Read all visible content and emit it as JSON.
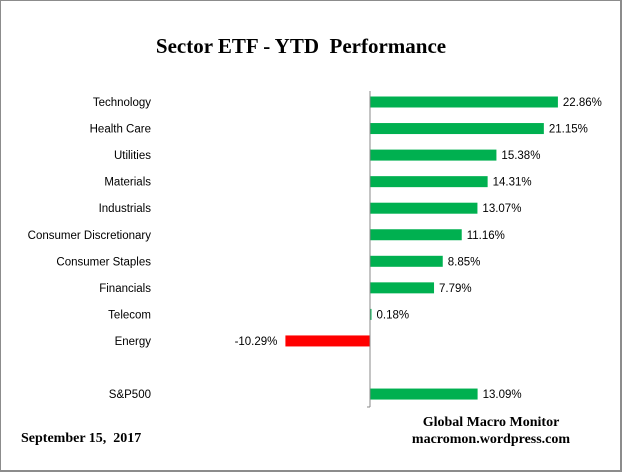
{
  "chart_data": {
    "type": "bar",
    "orientation": "horizontal",
    "title": "Sector ETF - YTD  Performance",
    "categories": [
      "Technology",
      "Health Care",
      "Utilities",
      "Materials",
      "Industrials",
      "Consumer Discretionary",
      "Consumer Staples",
      "Financials",
      "Telecom",
      "Energy",
      "",
      "S&P500"
    ],
    "values": [
      22.86,
      21.15,
      15.38,
      14.31,
      13.07,
      11.16,
      8.85,
      7.79,
      0.18,
      -10.29,
      null,
      13.09
    ],
    "data_labels": [
      "22.86%",
      "21.15%",
      "15.38%",
      "14.31%",
      "13.07%",
      "11.16%",
      "8.85%",
      "7.79%",
      "0.18%",
      "-10.29%",
      "",
      "13.09%"
    ],
    "xlim": [
      -20,
      25
    ],
    "grid": false,
    "legend": "none",
    "colors": {
      "positive": "#00B050",
      "negative": "#FF0000"
    }
  },
  "footer": {
    "date": "September 15,  2017",
    "source_name": "Global Macro Monitor",
    "source_url": "macromon.wordpress.com"
  }
}
